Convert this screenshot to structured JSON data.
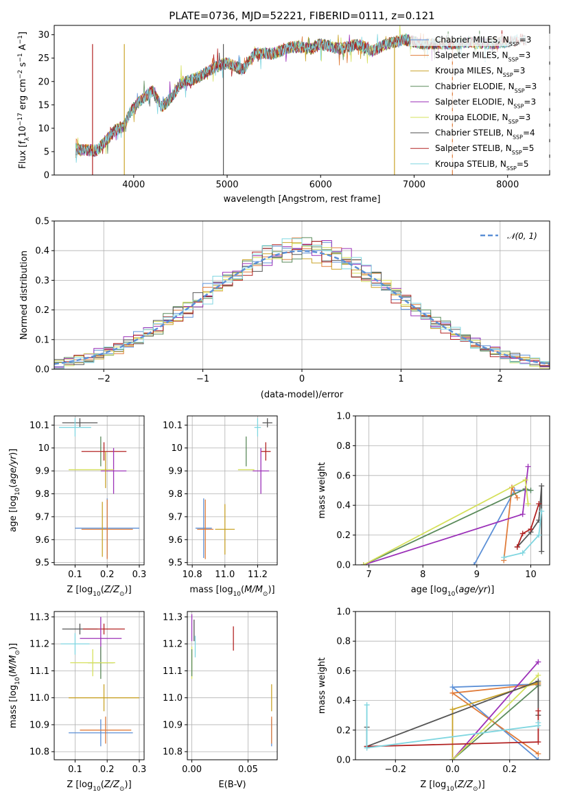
{
  "colors": {
    "Chabrier MILES": "#5b8fd6",
    "Salpeter MILES": "#e07b39",
    "Kroupa MILES": "#c9a227",
    "Chabrier ELODIE": "#5a8a5a",
    "Salpeter ELODIE": "#9b30b8",
    "Kroupa ELODIE": "#d5e05a",
    "Chabrier STELIB": "#555555",
    "Salpeter STELIB": "#b22222",
    "Kroupa STELIB": "#7fd6e0"
  },
  "chart_data": [
    {
      "id": "spectrum",
      "type": "line",
      "title": "PLATE=0736, MJD=52221, FIBERID=0111, z=0.121",
      "xlabel": "wavelength [Angstrom, rest frame]",
      "ylabel": "Flux [fλ10⁻¹⁷ erg cm⁻² s⁻¹ A⁻¹]",
      "xlim": [
        3150,
        8450
      ],
      "ylim": [
        0,
        32
      ],
      "xticks": [
        4000,
        5000,
        6000,
        7000,
        8000
      ],
      "yticks": [
        0,
        5,
        10,
        15,
        20,
        25,
        30
      ],
      "legend_position": "right",
      "legend": [
        {
          "name": "Chabrier MILES, N_SSP=3",
          "label": "Chabrier MILES, N",
          "sub": "SSP",
          "suffix": "=3"
        },
        {
          "name": "Salpeter MILES, N_SSP=3",
          "label": "Salpeter MILES, N",
          "sub": "SSP",
          "suffix": "=3"
        },
        {
          "name": "Kroupa MILES, N_SSP=3",
          "label": "Kroupa MILES, N",
          "sub": "SSP",
          "suffix": "=3"
        },
        {
          "name": "Chabrier ELODIE, N_SSP=3",
          "label": "Chabrier ELODIE, N",
          "sub": "SSP",
          "suffix": "=3"
        },
        {
          "name": "Salpeter ELODIE, N_SSP=3",
          "label": "Salpeter ELODIE, N",
          "sub": "SSP",
          "suffix": "=3"
        },
        {
          "name": "Kroupa ELODIE, N_SSP=3",
          "label": "Kroupa ELODIE, N",
          "sub": "SSP",
          "suffix": "=3"
        },
        {
          "name": "Chabrier STELIB, N_SSP=4",
          "label": "Chabrier STELIB, N",
          "sub": "SSP",
          "suffix": "=4"
        },
        {
          "name": "Salpeter STELIB, N_SSP=5",
          "label": "Salpeter STELIB, N",
          "sub": "SSP",
          "suffix": "=5"
        },
        {
          "name": "Kroupa STELIB, N_SSP=5",
          "label": "Kroupa STELIB, N",
          "sub": "SSP",
          "suffix": "=5"
        }
      ],
      "continuum_points": [
        [
          3380,
          5.5
        ],
        [
          3600,
          5.2
        ],
        [
          3700,
          7.2
        ],
        [
          3800,
          9.5
        ],
        [
          3900,
          10.5
        ],
        [
          3950,
          13
        ],
        [
          4050,
          15.5
        ],
        [
          4200,
          18
        ],
        [
          4300,
          14.5
        ],
        [
          4400,
          16.5
        ],
        [
          4500,
          19.5
        ],
        [
          4700,
          21
        ],
        [
          4860,
          23
        ],
        [
          5000,
          24
        ],
        [
          5170,
          22.5
        ],
        [
          5300,
          26
        ],
        [
          5500,
          26
        ],
        [
          5700,
          27.5
        ],
        [
          5900,
          27
        ],
        [
          6000,
          28
        ],
        [
          6200,
          27
        ],
        [
          6400,
          28
        ],
        [
          6560,
          26.5
        ],
        [
          6700,
          28
        ],
        [
          6900,
          29
        ],
        [
          7100,
          28
        ],
        [
          7400,
          28
        ],
        [
          7600,
          28.5
        ],
        [
          7800,
          28
        ],
        [
          8000,
          28.5
        ],
        [
          8150,
          29
        ]
      ]
    },
    {
      "id": "residuals",
      "type": "histogram",
      "xlabel": "(data-model)/error",
      "ylabel": "Normed distribution",
      "xlim": [
        -2.5,
        2.5
      ],
      "ylim": [
        0,
        0.5
      ],
      "xticks": [
        -2,
        -1,
        0,
        1,
        2
      ],
      "ytick_labels": [
        "0.0",
        "0.1",
        "0.2",
        "0.3",
        "0.4",
        "0.5"
      ],
      "legend": "N(0,1)",
      "legend_text": "𝒩(0, 1)",
      "legend_position": "top-right",
      "bin_width": 0.1
    },
    {
      "id": "Z_age",
      "type": "scatter",
      "xlabel": "Z [log10(Z/Z⊙)]",
      "ylabel": "age [log10(age/yr)]",
      "xlim": [
        0.035,
        0.315
      ],
      "ylim": [
        9.49,
        10.14
      ],
      "xticks": [
        0.1,
        0.2,
        0.3
      ],
      "yticks": [
        9.5,
        9.6,
        9.7,
        9.8,
        9.9,
        10.0,
        10.1
      ],
      "points": [
        {
          "series": "Chabrier STELIB",
          "x": 0.115,
          "y": 10.11,
          "xerr": 0.055,
          "yerr": 0.02
        },
        {
          "series": "Kroupa STELIB",
          "x": 0.1,
          "y": 10.09,
          "xerr": 0.05,
          "yerr": 0.04
        },
        {
          "series": "Chabrier ELODIE",
          "x": 0.18,
          "y": 9.985,
          "xerr": 0.0,
          "yerr": 0.065
        },
        {
          "series": "Salpeter STELIB",
          "x": 0.19,
          "y": 9.985,
          "xerr": 0.07,
          "yerr": 0.04
        },
        {
          "series": "Salpeter ELODIE",
          "x": 0.22,
          "y": 9.9,
          "xerr": 0.04,
          "yerr": 0.1
        },
        {
          "series": "Kroupa ELODIE",
          "x": 0.15,
          "y": 9.905,
          "xerr": 0.07,
          "yerr": 0.0
        },
        {
          "series": "Kroupa MILES",
          "x": 0.195,
          "y": 9.905,
          "xerr": 0.0,
          "yerr": 0.08
        },
        {
          "series": "Chabrier MILES",
          "x": 0.2,
          "y": 9.65,
          "xerr": 0.1,
          "yerr": 0.13
        },
        {
          "series": "Salpeter MILES",
          "x": 0.2,
          "y": 9.645,
          "xerr": 0.08,
          "yerr": 0.13
        },
        {
          "series": "Kroupa MILES",
          "x": 0.185,
          "y": 9.645,
          "xerr": 0.0,
          "yerr": 0.12
        }
      ]
    },
    {
      "id": "mass_age",
      "type": "scatter",
      "xlabel": "mass [log10(M/M⊙)]",
      "xlim": [
        10.77,
        11.32
      ],
      "ylim": [
        9.49,
        10.14
      ],
      "xticks": [
        10.8,
        11.0,
        11.2
      ],
      "xtick_labels": [
        "10.8",
        "11.0",
        "11.2"
      ],
      "yticks": [
        9.5,
        9.6,
        9.7,
        9.8,
        9.9,
        10.0,
        10.1
      ],
      "points": [
        {
          "series": "Chabrier STELIB",
          "x": 11.26,
          "y": 10.11,
          "xerr": 0.03,
          "yerr": 0.02
        },
        {
          "series": "Kroupa STELIB",
          "x": 11.2,
          "y": 10.09,
          "xerr": 0.02,
          "yerr": 0.04
        },
        {
          "series": "Chabrier ELODIE",
          "x": 11.13,
          "y": 9.985,
          "xerr": 0.0,
          "yerr": 0.065
        },
        {
          "series": "Salpeter STELIB",
          "x": 11.25,
          "y": 9.985,
          "xerr": 0.03,
          "yerr": 0.04
        },
        {
          "series": "Salpeter ELODIE",
          "x": 11.22,
          "y": 9.9,
          "xerr": 0.05,
          "yerr": 0.1
        },
        {
          "series": "Kroupa ELODIE",
          "x": 11.13,
          "y": 9.905,
          "xerr": 0.05,
          "yerr": 0.0
        },
        {
          "series": "Chabrier MILES",
          "x": 10.87,
          "y": 9.65,
          "xerr": 0.05,
          "yerr": 0.13
        },
        {
          "series": "Salpeter MILES",
          "x": 10.88,
          "y": 9.645,
          "xerr": 0.05,
          "yerr": 0.13
        },
        {
          "series": "Kroupa MILES",
          "x": 11.0,
          "y": 9.645,
          "xerr": 0.06,
          "yerr": 0.11
        }
      ]
    },
    {
      "id": "mw_age",
      "type": "line",
      "xlabel": "age [log10(age/yr)]",
      "ylabel": "mass weight",
      "xlim": [
        6.75,
        10.35
      ],
      "ylim": [
        0,
        1.0
      ],
      "xticks": [
        7,
        8,
        9,
        10
      ],
      "ytick_labels": [
        "0.0",
        "0.2",
        "0.4",
        "0.6",
        "0.8",
        "1.0"
      ],
      "series": [
        {
          "name": "Chabrier MILES",
          "x": [
            8.95,
            9.7,
            10.0
          ],
          "y": [
            0.0,
            0.5,
            0.5
          ]
        },
        {
          "name": "Salpeter MILES",
          "x": [
            9.5,
            9.65,
            9.75
          ],
          "y": [
            0.03,
            0.52,
            0.45
          ]
        },
        {
          "name": "Chabrier ELODIE",
          "x": [
            6.9,
            9.9,
            10.0
          ],
          "y": [
            0.0,
            0.51,
            0.5
          ]
        },
        {
          "name": "Salpeter ELODIE",
          "x": [
            6.9,
            9.85,
            9.95
          ],
          "y": [
            0.0,
            0.34,
            0.66
          ]
        },
        {
          "name": "Kroupa ELODIE",
          "x": [
            6.9,
            9.9,
            9.95
          ],
          "y": [
            0.0,
            0.57,
            0.41
          ]
        },
        {
          "name": "Chabrier STELIB",
          "x": [
            9.75,
            10.0,
            10.15,
            10.2,
            10.2
          ],
          "y": [
            0.12,
            0.22,
            0.3,
            0.53,
            0.09
          ]
        },
        {
          "name": "Salpeter STELIB",
          "x": [
            9.75,
            9.85,
            10.0,
            10.15
          ],
          "y": [
            0.12,
            0.21,
            0.24,
            0.41
          ]
        },
        {
          "name": "Kroupa STELIB",
          "x": [
            9.5,
            9.85,
            10.15,
            10.2
          ],
          "y": [
            0.05,
            0.08,
            0.2,
            0.36
          ]
        }
      ]
    },
    {
      "id": "Z_mass",
      "type": "scatter",
      "xlabel": "Z [log10(Z/Z⊙)]",
      "ylabel": "mass [log10(M/M⊙)]",
      "xlim": [
        0.035,
        0.315
      ],
      "ylim": [
        10.77,
        11.32
      ],
      "xticks": [
        0.1,
        0.2,
        0.3
      ],
      "yticks": [
        10.8,
        10.9,
        11.0,
        11.1,
        11.2,
        11.3
      ],
      "ytick_labels": [
        "10.8",
        "10.9",
        "11.0",
        "11.1",
        "11.2",
        "11.3"
      ],
      "points": [
        {
          "series": "Chabrier STELIB",
          "x": 0.115,
          "y": 11.255,
          "xerr": 0.055,
          "yerr": 0.02
        },
        {
          "series": "Salpeter STELIB",
          "x": 0.19,
          "y": 11.255,
          "xerr": 0.065,
          "yerr": 0.02
        },
        {
          "series": "Salpeter ELODIE",
          "x": 0.18,
          "y": 11.22,
          "xerr": 0.065,
          "yerr": 0.08
        },
        {
          "series": "Kroupa STELIB",
          "x": 0.1,
          "y": 11.2,
          "xerr": 0.045,
          "yerr": 0.04
        },
        {
          "series": "Chabrier ELODIE",
          "x": 0.18,
          "y": 11.13,
          "xerr": 0.04,
          "yerr": 0.06
        },
        {
          "series": "Kroupa ELODIE",
          "x": 0.155,
          "y": 11.13,
          "xerr": 0.07,
          "yerr": 0.05
        },
        {
          "series": "Kroupa MILES",
          "x": 0.19,
          "y": 11.0,
          "xerr": 0.11,
          "yerr": 0.05
        },
        {
          "series": "Chabrier MILES",
          "x": 0.18,
          "y": 10.87,
          "xerr": 0.1,
          "yerr": 0.05
        },
        {
          "series": "Salpeter MILES",
          "x": 0.195,
          "y": 10.88,
          "xerr": 0.08,
          "yerr": 0.05
        }
      ]
    },
    {
      "id": "ebv_mass",
      "type": "scatter",
      "xlabel": "E(B-V)",
      "xlim": [
        -0.004,
        0.076
      ],
      "ylim": [
        10.77,
        11.32
      ],
      "xticks": [
        0.0,
        0.05
      ],
      "xtick_labels": [
        "0.00",
        "0.05"
      ],
      "yticks": [
        10.8,
        10.9,
        11.0,
        11.1,
        11.2,
        11.3
      ],
      "ytick_labels": [
        "10.8",
        "10.9",
        "11.0",
        "11.1",
        "11.2",
        "11.3"
      ],
      "points": [
        {
          "series": "Salpeter ELODIE",
          "x": 0.0,
          "y": 11.26,
          "xerr": 0.0,
          "yerr": 0.05
        },
        {
          "series": "Chabrier STELIB",
          "x": 0.002,
          "y": 11.25,
          "xerr": 0.0,
          "yerr": 0.04
        },
        {
          "series": "Salpeter STELIB",
          "x": 0.037,
          "y": 11.22,
          "xerr": 0.0,
          "yerr": 0.045
        },
        {
          "series": "Kroupa STELIB",
          "x": 0.003,
          "y": 11.19,
          "xerr": 0.0,
          "yerr": 0.04
        },
        {
          "series": "Kroupa ELODIE",
          "x": 0.0,
          "y": 11.13,
          "xerr": 0.0,
          "yerr": 0.06
        },
        {
          "series": "Chabrier ELODIE",
          "x": 0.0,
          "y": 11.13,
          "xerr": 0.0,
          "yerr": 0.05
        },
        {
          "series": "Kroupa MILES",
          "x": 0.071,
          "y": 11.0,
          "xerr": 0.0,
          "yerr": 0.05
        },
        {
          "series": "Chabrier MILES",
          "x": 0.071,
          "y": 10.87,
          "xerr": 0.0,
          "yerr": 0.05
        },
        {
          "series": "Salpeter MILES",
          "x": 0.071,
          "y": 10.88,
          "xerr": 0.0,
          "yerr": 0.05
        }
      ]
    },
    {
      "id": "mw_Z",
      "type": "line",
      "xlabel": "Z [log10(Z/Z⊙)]",
      "ylabel": "mass weight",
      "xlim": [
        -0.34,
        0.34
      ],
      "ylim": [
        0,
        1.0
      ],
      "xticks": [
        -0.2,
        0.0,
        0.2
      ],
      "xtick_labels": [
        "−0.2",
        "0.0",
        "0.2"
      ],
      "ytick_labels": [
        "0.0",
        "0.2",
        "0.4",
        "0.6",
        "0.8",
        "1.0"
      ],
      "series": [
        {
          "name": "Chabrier MILES",
          "x": [
            0.3,
            0.0,
            0.3
          ],
          "y": [
            0.0,
            0.49,
            0.51
          ]
        },
        {
          "name": "Salpeter MILES",
          "x": [
            0.3,
            0.0,
            0.3
          ],
          "y": [
            0.04,
            0.45,
            0.51
          ]
        },
        {
          "name": "Kroupa MILES",
          "x": [
            0.0,
            0.0,
            0.3
          ],
          "y": [
            0.0,
            0.34,
            0.52
          ]
        },
        {
          "name": "Chabrier ELODIE",
          "x": [
            0.0,
            0.3
          ],
          "y": [
            0.0,
            0.5
          ]
        },
        {
          "name": "Salpeter ELODIE",
          "x": [
            0.0,
            0.3
          ],
          "y": [
            0.0,
            0.66
          ]
        },
        {
          "name": "Kroupa ELODIE",
          "x": [
            0.0,
            0.3
          ],
          "y": [
            0.0,
            0.57
          ]
        },
        {
          "name": "Chabrier STELIB",
          "x": [
            -0.3,
            -0.3,
            0.3,
            0.3
          ],
          "y": [
            0.22,
            0.09,
            0.53,
            0.3
          ]
        },
        {
          "name": "Salpeter STELIB",
          "x": [
            -0.3,
            0.3,
            0.3
          ],
          "y": [
            0.09,
            0.12,
            0.33
          ]
        },
        {
          "name": "Kroupa STELIB",
          "x": [
            -0.3,
            -0.3,
            0.3,
            0.3
          ],
          "y": [
            0.37,
            0.08,
            0.23,
            0.25
          ]
        }
      ]
    }
  ]
}
